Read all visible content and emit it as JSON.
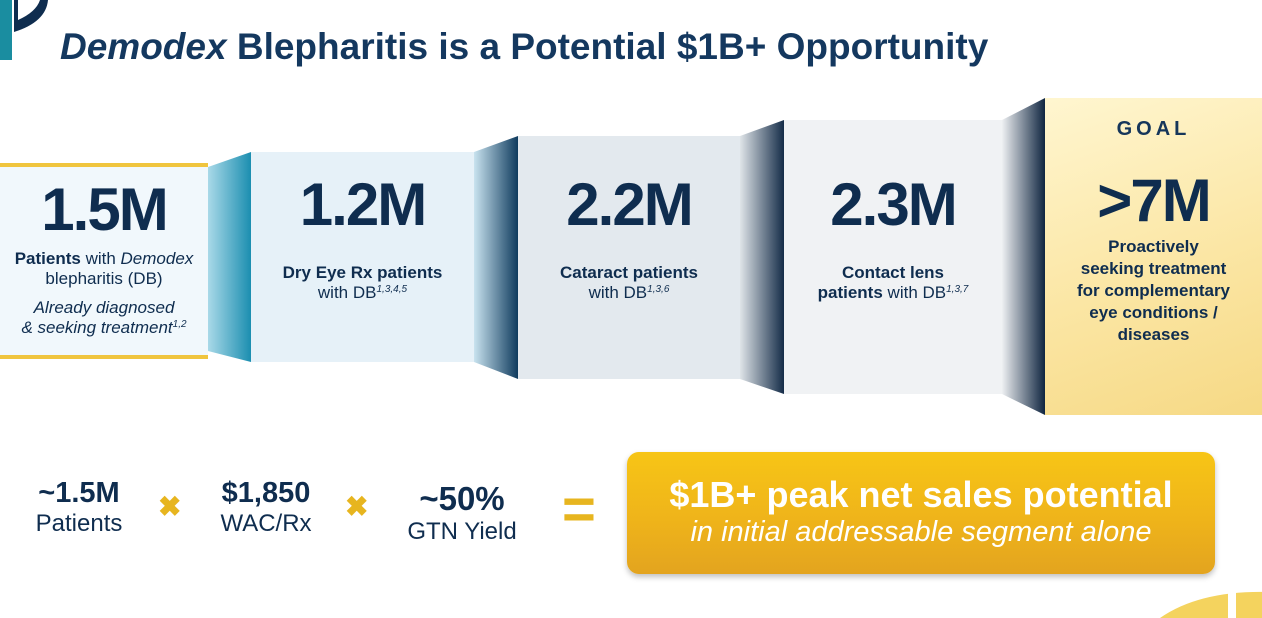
{
  "title": {
    "italic": "Demodex",
    "rest": " Blepharitis is a Potential $1B+ Opportunity"
  },
  "panels": [
    {
      "value": "1.5M",
      "line1_bold": "Patients",
      "line1_rest": " with ",
      "line1_italic": "Demodex",
      "line2": "blepharitis (DB)",
      "line3": "Already diagnosed",
      "line4": "& seeking treatment",
      "sup": "1,2"
    },
    {
      "value": "1.2M",
      "line1_bold": "Dry Eye Rx patients",
      "line2": "with DB",
      "sup": "1,3,4,5"
    },
    {
      "value": "2.2M",
      "line1_bold": "Cataract patients",
      "line2": "with DB",
      "sup": "1,3,6"
    },
    {
      "value": "2.3M",
      "line1_bold": "Contact lens",
      "line2_bold": "patients",
      "line2": " with DB",
      "sup": "1,3,7"
    },
    {
      "label": "GOAL",
      "value": ">7M",
      "lines": [
        "Proactively",
        "seeking treatment",
        "for complementary",
        "eye conditions /",
        "diseases"
      ]
    }
  ],
  "equation": {
    "a": {
      "value": "~1.5M",
      "label": "Patients"
    },
    "op1": "✖",
    "b": {
      "value": "$1,850",
      "label": "WAC/Rx"
    },
    "op2": "✖",
    "c": {
      "value": "~50%",
      "label": "GTN Yield"
    },
    "eq": "="
  },
  "result": {
    "line1": "$1B+ peak net sales potential",
    "line2": "in initial addressable segment alone"
  },
  "colors": {
    "navy": "#0f2d4f",
    "gold": "#f0c53e",
    "teal": "#2fa2c2"
  }
}
